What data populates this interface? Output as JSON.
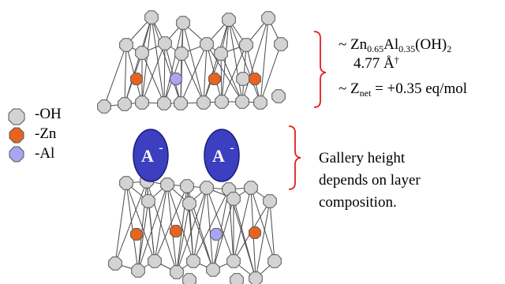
{
  "colors": {
    "oh_fill": "#d3d3d3",
    "zn_fill": "#e8641e",
    "al_fill": "#a6a6f2",
    "anion_fill": "#3b3fc0",
    "bracket": "#e02020",
    "edge": "#4a4a4a"
  },
  "legend": {
    "oh_label": "-OH",
    "zn_label": "-Zn",
    "al_label": "-Al"
  },
  "anion": {
    "symbol": "A",
    "charge": "-"
  },
  "layer_info": {
    "formula_prefix": "~ Zn",
    "zn_sub": "0.65",
    "al_sym": "Al",
    "al_sub": "0.35",
    "hydroxide": "(OH)",
    "hydroxide_sub": "2",
    "spacing_value": "4.77 Å",
    "spacing_mark": "†",
    "znet_prefix": "~ Z",
    "znet_sub": "net",
    "znet_value": " = +0.35 eq/mol"
  },
  "gallery": {
    "line1": "Gallery height",
    "line2": "depends on layer",
    "line3": "composition."
  }
}
